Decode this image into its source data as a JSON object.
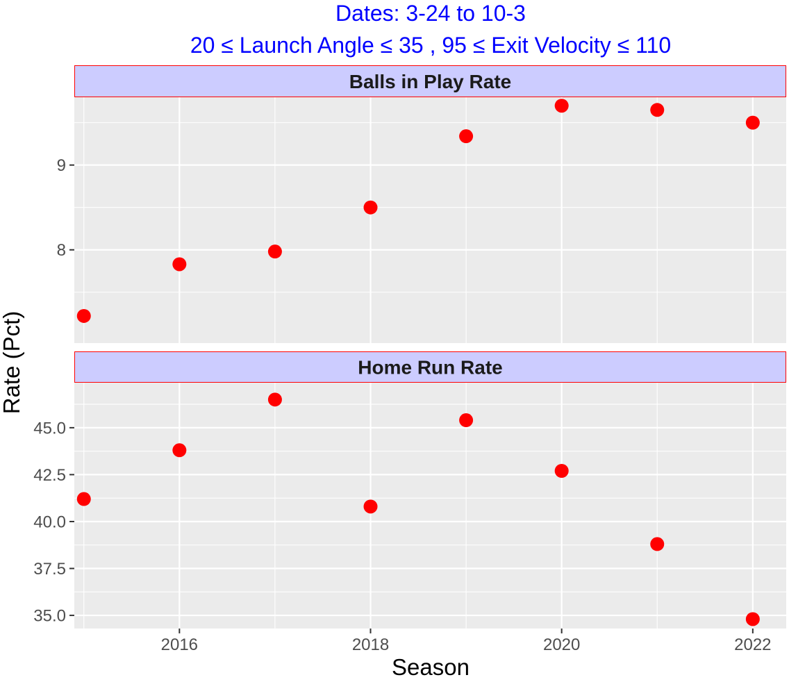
{
  "title": {
    "line1": "Dates: 3-24 to 10-3",
    "line2": "20 ≤ Launch Angle ≤ 35 ,  95 ≤ Exit Velocity ≤ 110"
  },
  "colors": {
    "title": "#0000ff",
    "point": "#ff0000",
    "panel_bg": "#ebebeb",
    "strip_bg": "#ccccff",
    "strip_border": "#ff0000",
    "grid": "#ffffff"
  },
  "chart_data": {
    "type": "scatter",
    "xlabel": "Season",
    "ylabel": "Rate (Pct)",
    "xlim": [
      2014.9,
      2022.35
    ],
    "x_ticks": [
      2016,
      2018,
      2020,
      2022
    ],
    "x_tick_labels": [
      "2016",
      "2018",
      "2020",
      "2022"
    ],
    "facets": [
      {
        "name": "Balls in Play Rate",
        "ylim": [
          6.9,
          9.8
        ],
        "y_ticks": [
          8,
          9
        ],
        "y_tick_labels": [
          "8",
          "9"
        ],
        "points": [
          {
            "x": 2015,
            "y": 7.22
          },
          {
            "x": 2016,
            "y": 7.83
          },
          {
            "x": 2017,
            "y": 7.98
          },
          {
            "x": 2018,
            "y": 8.5
          },
          {
            "x": 2019,
            "y": 9.34
          },
          {
            "x": 2020,
            "y": 9.7
          },
          {
            "x": 2021,
            "y": 9.65
          },
          {
            "x": 2022,
            "y": 9.5
          }
        ]
      },
      {
        "name": "Home Run Rate",
        "ylim": [
          34.3,
          47.4
        ],
        "y_ticks": [
          35.0,
          37.5,
          40.0,
          42.5,
          45.0
        ],
        "y_tick_labels": [
          "35.0",
          "37.5",
          "40.0",
          "42.5",
          "45.0"
        ],
        "points": [
          {
            "x": 2015,
            "y": 41.2
          },
          {
            "x": 2016,
            "y": 43.8
          },
          {
            "x": 2017,
            "y": 46.5
          },
          {
            "x": 2018,
            "y": 40.8
          },
          {
            "x": 2019,
            "y": 45.4
          },
          {
            "x": 2020,
            "y": 42.7
          },
          {
            "x": 2021,
            "y": 38.8
          },
          {
            "x": 2022,
            "y": 34.8
          }
        ]
      }
    ]
  }
}
